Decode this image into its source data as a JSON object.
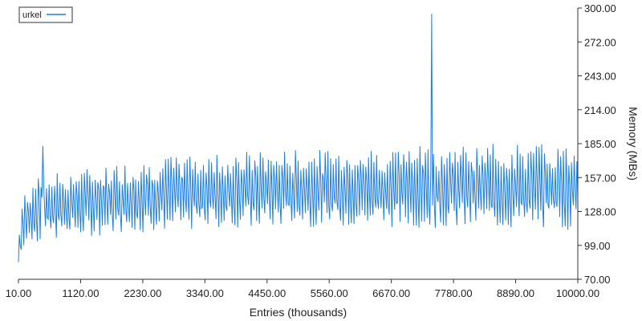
{
  "chart_data": {
    "type": "line",
    "xlabel": "Entries (thousands)",
    "ylabel": "Memory (MBs)",
    "xlim": [
      10,
      10000
    ],
    "ylim": [
      70,
      300
    ],
    "x_ticks": [
      "10.00",
      "1120.00",
      "2230.00",
      "3340.00",
      "4450.00",
      "5560.00",
      "6670.00",
      "7780.00",
      "8890.00",
      "10000.00"
    ],
    "y_ticks": [
      "70.00",
      "99.00",
      "128.00",
      "157.00",
      "185.00",
      "214.00",
      "243.00",
      "272.00",
      "300.00"
    ],
    "legend_position": "top-left",
    "grid": false,
    "series": [
      {
        "name": "urkel",
        "color": "#1f7ee0",
        "x_start": 10,
        "x_end": 10000,
        "envelope": [
          {
            "x": 10,
            "low": 80,
            "high": 103
          },
          {
            "x": 80,
            "low": 95,
            "high": 140
          },
          {
            "x": 300,
            "low": 98,
            "high": 155
          },
          {
            "x": 500,
            "low": 100,
            "high": 160
          },
          {
            "x": 1000,
            "low": 102,
            "high": 163
          },
          {
            "x": 2000,
            "low": 106,
            "high": 170
          },
          {
            "x": 3000,
            "low": 108,
            "high": 176
          },
          {
            "x": 4000,
            "low": 110,
            "high": 179
          },
          {
            "x": 5000,
            "low": 111,
            "high": 180
          },
          {
            "x": 6000,
            "low": 111,
            "high": 181
          },
          {
            "x": 7000,
            "low": 110,
            "high": 183
          },
          {
            "x": 8000,
            "low": 109,
            "high": 185
          },
          {
            "x": 9000,
            "low": 108,
            "high": 185
          },
          {
            "x": 10000,
            "low": 108,
            "high": 185
          }
        ],
        "spikes": [
          {
            "x": 452,
            "y": 183
          },
          {
            "x": 7390,
            "y": 295
          }
        ]
      }
    ]
  }
}
